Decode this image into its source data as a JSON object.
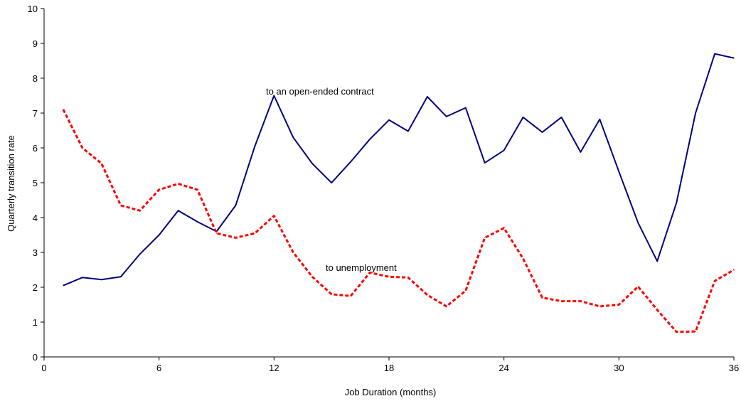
{
  "chart_data": {
    "type": "line",
    "title": "",
    "xlabel": "Job Duration (months)",
    "ylabel": "Quarterly transition rate",
    "xlim": [
      0,
      36
    ],
    "ylim": [
      0,
      10
    ],
    "x_ticks": [
      "0",
      "6",
      "12",
      "18",
      "24",
      "30",
      "36"
    ],
    "y_ticks": [
      "0",
      "1",
      "2",
      "3",
      "4",
      "5",
      "6",
      "7",
      "8",
      "9",
      "10"
    ],
    "grid": false,
    "legend": "none",
    "annotations": [
      {
        "text": "to an open-ended contract"
      },
      {
        "text": "to unemployment"
      }
    ],
    "x": [
      1,
      2,
      3,
      4,
      5,
      6,
      7,
      8,
      9,
      10,
      11,
      12,
      13,
      14,
      15,
      16,
      17,
      18,
      19,
      20,
      21,
      22,
      23,
      24,
      25,
      26,
      27,
      28,
      29,
      30,
      31,
      32,
      33,
      34,
      35,
      36
    ],
    "series": [
      {
        "style": "solid",
        "color": "#000080",
        "values": [
          2.05,
          2.28,
          2.22,
          2.3,
          2.95,
          3.5,
          4.2,
          3.88,
          3.6,
          4.35,
          6.05,
          7.5,
          6.3,
          5.55,
          5.0,
          5.6,
          6.25,
          6.8,
          6.48,
          7.47,
          6.9,
          7.15,
          5.57,
          5.93,
          6.88,
          6.45,
          6.88,
          5.88,
          6.82,
          5.32,
          3.85,
          2.75,
          4.42,
          7.0,
          8.7,
          8.58
        ]
      },
      {
        "style": "dashed",
        "color": "#ff0000",
        "values": [
          7.1,
          6.0,
          5.55,
          4.35,
          4.2,
          4.8,
          4.97,
          4.8,
          3.55,
          3.42,
          3.55,
          4.05,
          3.0,
          2.3,
          1.8,
          1.75,
          2.42,
          2.3,
          2.28,
          1.78,
          1.45,
          1.9,
          3.42,
          3.7,
          2.82,
          1.7,
          1.6,
          1.6,
          1.45,
          1.5,
          2.02,
          1.35,
          0.72,
          0.73,
          2.18,
          2.5
        ]
      }
    ]
  }
}
